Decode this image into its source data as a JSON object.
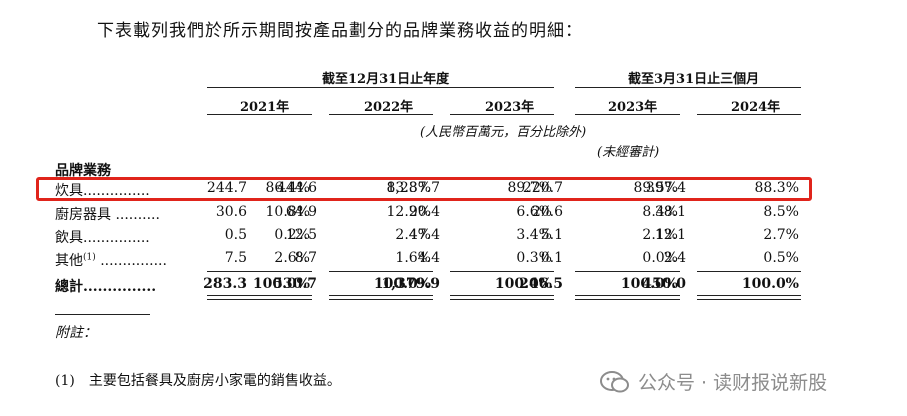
{
  "intro": "下表載列我們於所示期間按產品劃分的品牌業務收益的明細：",
  "headers": {
    "group_year": "截至12月31日止年度",
    "group_quarter": "截至3月31日止三個月",
    "periods": [
      "2021年",
      "2022年",
      "2023年",
      "2023年",
      "2024年"
    ],
    "currency_note": "(人民幣百萬元，百分比除外)",
    "unaudited_note": "(未經審計)"
  },
  "section_title": "品牌業務",
  "rows": [
    {
      "label": "炊具...............",
      "cells": [
        "244.7",
        "86.4%",
        "444.6",
        "83.8%",
        "1,237.7",
        "89.7%",
        "220.7",
        "89.5%",
        "397.4",
        "88.3%"
      ]
    },
    {
      "label": "廚房器具 ..........",
      "cells": [
        "30.6",
        "10.8%",
        "64.9",
        "12.2%",
        "90.4",
        "6.6%",
        "20.6",
        "8.4%",
        "38.1",
        "8.5%"
      ]
    },
    {
      "label": "飲具...............",
      "cells": [
        "0.5",
        "0.2%",
        "12.5",
        "2.4%",
        "47.4",
        "3.4%",
        "5.1",
        "2.1%",
        "12.1",
        "2.7%"
      ]
    },
    {
      "label": "其他",
      "label_sup": "(1)",
      "label_dots": " ...............",
      "cells": [
        "7.5",
        "2.6%",
        "8.7",
        "1.6%",
        "4.4",
        "0.3%",
        "0.1",
        "0.0%",
        "2.4",
        "0.5%"
      ]
    }
  ],
  "total": {
    "label": "總計...............",
    "cells": [
      "283.3",
      "100.0%",
      "530.7",
      "100.0%",
      "1,379.9",
      "100.0%",
      "246.5",
      "100.0%",
      "450.0",
      "100.0%"
    ]
  },
  "footnote_title": "附註：",
  "footnote": "(1)　主要包括餐具及廚房小家電的銷售收益。",
  "watermark": "公众号 · 读财报说新股",
  "colors": {
    "highlight": "#e0241b",
    "watermark": "#8c8c8c"
  }
}
